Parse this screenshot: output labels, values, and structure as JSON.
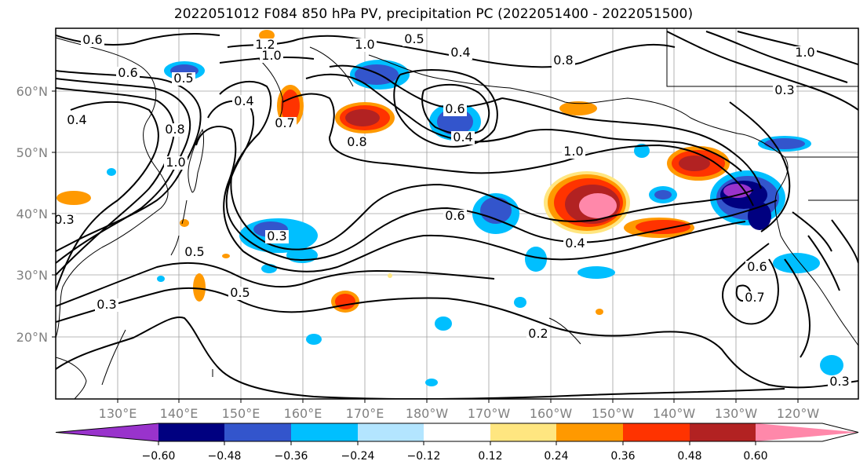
{
  "title": "2022051012 F084 850 hPa PV, precipitation PC (2022051400 - 2022051500)",
  "map": {
    "lat_labels": [
      "60°N",
      "50°N",
      "40°N",
      "30°N",
      "20°N"
    ],
    "lon_labels": [
      "130°E",
      "140°E",
      "150°E",
      "160°E",
      "170°E",
      "180°W",
      "170°W",
      "160°W",
      "150°W",
      "140°W",
      "130°W",
      "120°W"
    ],
    "contour_labels": [
      "0.6",
      "1.2",
      "1.0",
      "1.0",
      "0.5",
      "0.4",
      "0.8",
      "1.0",
      "0.6",
      "0.5",
      "0.4",
      "0.7",
      "0.4",
      "0.6",
      "0.8",
      "1.0",
      "0.8",
      "1.0",
      "0.3",
      "0.6",
      "0.4",
      "0.5",
      "0.3",
      "0.5",
      "0.3",
      "0.2",
      "0.7",
      "0.6",
      "0.3",
      "0.4",
      "0.3"
    ]
  },
  "colorbar": {
    "colors": [
      "#9933cc",
      "#000080",
      "#3355cc",
      "#00bfff",
      "#b3e5ff",
      "#ffffff",
      "#ffe680",
      "#ff9900",
      "#ff3300",
      "#b22222",
      "#ff88aa"
    ],
    "ticks": [
      "−0.60",
      "−0.48",
      "−0.36",
      "−0.24",
      "−0.12",
      "0.12",
      "0.24",
      "0.36",
      "0.48",
      "0.60"
    ]
  }
}
